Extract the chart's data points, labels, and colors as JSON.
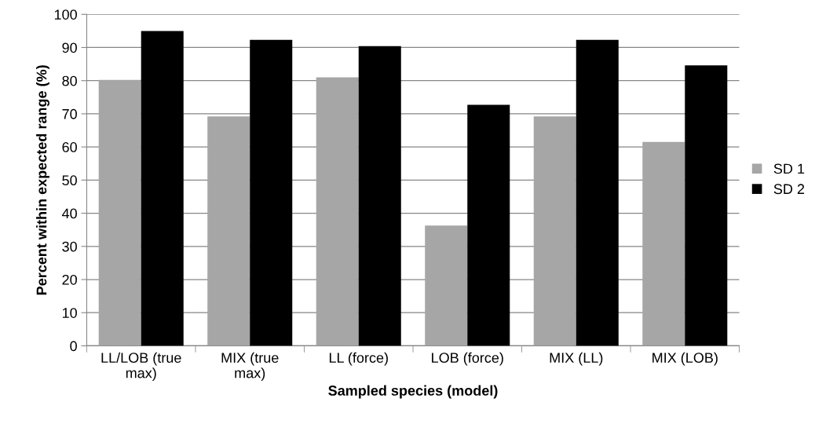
{
  "chart_data": {
    "type": "bar",
    "xlabel": "Sampled species (model)",
    "ylabel": "Percent within expected range (%)",
    "categories": [
      "LL/LOB (true\nmax)",
      "MIX (true\nmax)",
      "LL (force)",
      "LOB (force)",
      "MIX (LL)",
      "MIX (LOB)"
    ],
    "series": [
      {
        "name": "SD 1",
        "color": "#a6a6a6",
        "values": [
          80.2,
          69.2,
          81,
          36.3,
          69.2,
          61.5
        ]
      },
      {
        "name": "SD 2",
        "color": "#000000",
        "values": [
          95,
          92.3,
          90.4,
          72.7,
          92.3,
          84.6
        ]
      }
    ],
    "ylim": [
      0,
      100
    ],
    "yticks": [
      0,
      10,
      20,
      30,
      40,
      50,
      60,
      70,
      80,
      90,
      100
    ],
    "grid": "y",
    "legend": "right"
  }
}
